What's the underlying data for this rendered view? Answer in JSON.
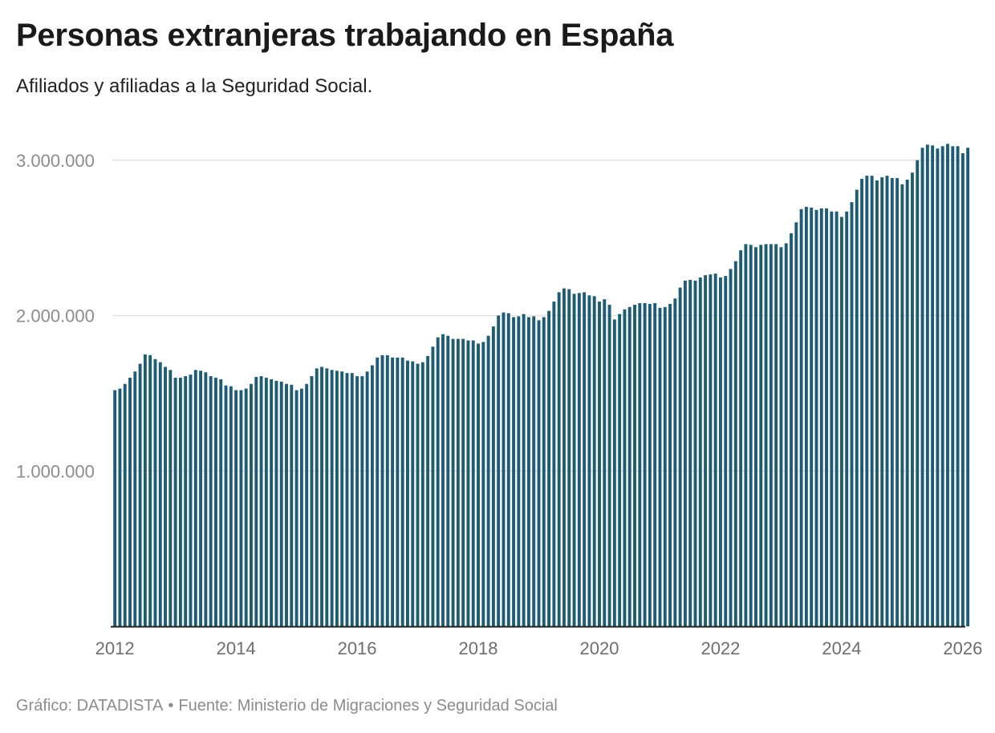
{
  "header": {
    "title": "Personas extranjeras trabajando en España",
    "subtitle": "Afiliados y afiliadas a la Seguridad Social."
  },
  "footer": {
    "credit": "Gráfico: DATADISTA",
    "separator": "•",
    "source": "Fuente: Ministerio de Migraciones y Seguridad Social"
  },
  "colors": {
    "bar": "#1e5c75",
    "gridline": "#e2e2e2",
    "axis_text": "#8c8c8c",
    "baseline": "#222222"
  },
  "chart_data": {
    "type": "bar",
    "x_start": "2012-01",
    "x_end": "2026-01",
    "frequency": "monthly",
    "ylim": [
      0,
      3200000
    ],
    "grid": true,
    "yticks": [
      {
        "value": 1000000,
        "label": "1.000.000"
      },
      {
        "value": 2000000,
        "label": "2.000.000"
      },
      {
        "value": 3000000,
        "label": "3.000.000"
      }
    ],
    "xticks": [
      {
        "value": "2012-01",
        "label": "2012"
      },
      {
        "value": "2014-01",
        "label": "2014"
      },
      {
        "value": "2016-01",
        "label": "2016"
      },
      {
        "value": "2018-01",
        "label": "2018"
      },
      {
        "value": "2020-01",
        "label": "2020"
      },
      {
        "value": "2022-01",
        "label": "2022"
      },
      {
        "value": "2024-01",
        "label": "2024"
      },
      {
        "value": "2026-01",
        "label": "2026"
      }
    ],
    "values": [
      1520000,
      1530000,
      1560000,
      1600000,
      1640000,
      1690000,
      1750000,
      1745000,
      1720000,
      1700000,
      1670000,
      1650000,
      1600000,
      1600000,
      1610000,
      1620000,
      1650000,
      1645000,
      1635000,
      1610000,
      1600000,
      1590000,
      1550000,
      1545000,
      1520000,
      1520000,
      1530000,
      1560000,
      1605000,
      1610000,
      1600000,
      1590000,
      1580000,
      1575000,
      1560000,
      1555000,
      1520000,
      1530000,
      1560000,
      1610000,
      1660000,
      1670000,
      1660000,
      1650000,
      1645000,
      1640000,
      1630000,
      1630000,
      1610000,
      1610000,
      1640000,
      1680000,
      1730000,
      1745000,
      1745000,
      1730000,
      1730000,
      1730000,
      1710000,
      1705000,
      1690000,
      1700000,
      1740000,
      1800000,
      1860000,
      1880000,
      1870000,
      1850000,
      1850000,
      1850000,
      1840000,
      1840000,
      1820000,
      1830000,
      1870000,
      1930000,
      2000000,
      2020000,
      2015000,
      1990000,
      1995000,
      2010000,
      1990000,
      1995000,
      1970000,
      1990000,
      2030000,
      2090000,
      2150000,
      2175000,
      2170000,
      2140000,
      2145000,
      2150000,
      2130000,
      2125000,
      2090000,
      2105000,
      2070000,
      1975000,
      2010000,
      2040000,
      2055000,
      2070000,
      2080000,
      2080000,
      2075000,
      2080000,
      2050000,
      2055000,
      2075000,
      2110000,
      2180000,
      2225000,
      2230000,
      2225000,
      2245000,
      2260000,
      2265000,
      2270000,
      2245000,
      2255000,
      2300000,
      2350000,
      2420000,
      2460000,
      2455000,
      2440000,
      2455000,
      2460000,
      2460000,
      2460000,
      2440000,
      2465000,
      2530000,
      2600000,
      2685000,
      2700000,
      2695000,
      2680000,
      2690000,
      2690000,
      2670000,
      2670000,
      2635000,
      2670000,
      2730000,
      2810000,
      2880000,
      2900000,
      2900000,
      2870000,
      2890000,
      2900000,
      2885000,
      2885000,
      2845000,
      2875000,
      2920000,
      3000000,
      3080000,
      3100000,
      3095000,
      3075000,
      3090000,
      3105000,
      3090000,
      3090000,
      3045000,
      3080000
    ]
  }
}
